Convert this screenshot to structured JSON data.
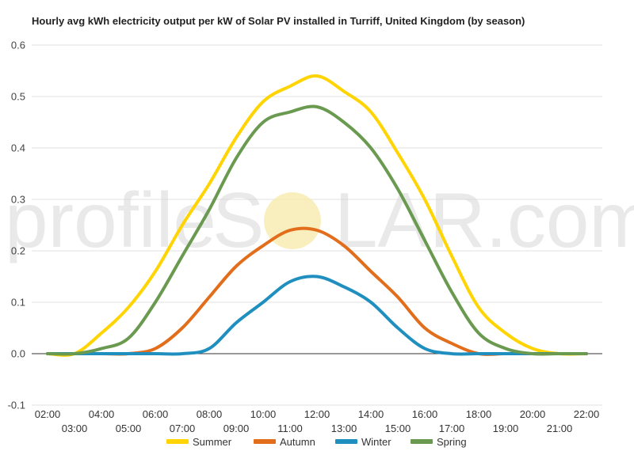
{
  "title": "Hourly avg kWh electricity output per kW of Solar PV installed in Turriff, United Kingdom (by season)",
  "watermark": {
    "left": "profile",
    "s_letter": "S",
    "right": "LAR.com",
    "sun_color": "#f7e9a8"
  },
  "chart_data": {
    "type": "line",
    "title": "Hourly avg kWh electricity output per kW of Solar PV installed in Turriff, United Kingdom (by season)",
    "xlabel": "",
    "ylabel": "",
    "ylim": [
      -0.1,
      0.6
    ],
    "yticks": [
      "-0.1",
      "0.0",
      "0.1",
      "0.2",
      "0.3",
      "0.4",
      "0.5",
      "0.6"
    ],
    "grid": true,
    "legend": "bottom",
    "x": [
      "02:00",
      "03:00",
      "04:00",
      "05:00",
      "06:00",
      "07:00",
      "08:00",
      "09:00",
      "10:00",
      "11:00",
      "12:00",
      "13:00",
      "14:00",
      "15:00",
      "16:00",
      "17:00",
      "18:00",
      "19:00",
      "20:00",
      "21:00",
      "22:00"
    ],
    "series": [
      {
        "name": "Summer",
        "color": "#ffd400",
        "values": [
          0.0,
          0.0,
          0.04,
          0.09,
          0.16,
          0.25,
          0.33,
          0.42,
          0.49,
          0.52,
          0.54,
          0.51,
          0.47,
          0.39,
          0.3,
          0.19,
          0.09,
          0.04,
          0.01,
          0.0,
          0.0
        ]
      },
      {
        "name": "Autumn",
        "color": "#e26d1b",
        "values": [
          0.0,
          0.0,
          0.0,
          0.0,
          0.01,
          0.05,
          0.11,
          0.17,
          0.21,
          0.24,
          0.24,
          0.21,
          0.16,
          0.11,
          0.05,
          0.02,
          0.0,
          0.0,
          0.0,
          0.0,
          0.0
        ]
      },
      {
        "name": "Winter",
        "color": "#1f8fbf",
        "values": [
          0.0,
          0.0,
          0.0,
          0.0,
          0.0,
          0.0,
          0.01,
          0.06,
          0.1,
          0.14,
          0.15,
          0.13,
          0.1,
          0.05,
          0.01,
          0.0,
          0.0,
          0.0,
          0.0,
          0.0,
          0.0
        ]
      },
      {
        "name": "Spring",
        "color": "#6a9a50",
        "values": [
          0.0,
          0.0,
          0.01,
          0.03,
          0.1,
          0.19,
          0.28,
          0.38,
          0.45,
          0.47,
          0.48,
          0.45,
          0.4,
          0.32,
          0.22,
          0.12,
          0.04,
          0.01,
          0.0,
          0.0,
          0.0
        ]
      }
    ]
  }
}
